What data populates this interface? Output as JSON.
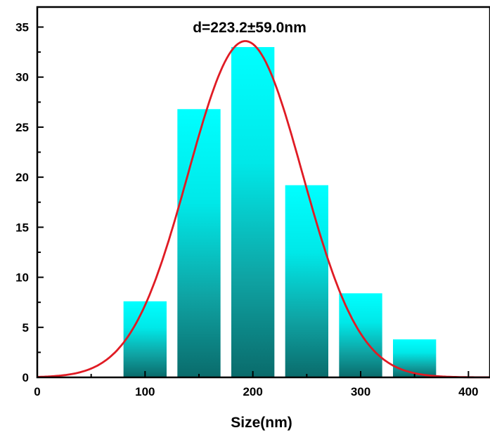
{
  "chart_data": {
    "type": "bar",
    "title": "",
    "xlabel": "Size(nm)",
    "ylabel": "",
    "annotation": "d=223.2±59.0nm",
    "xlim": [
      0,
      420
    ],
    "ylim": [
      0,
      37
    ],
    "xticks": [
      0,
      100,
      200,
      300,
      400
    ],
    "xtick_labels": [
      "0",
      "100",
      "200",
      "300",
      "400"
    ],
    "yticks": [
      0,
      5,
      10,
      15,
      20,
      25,
      30,
      35
    ],
    "ytick_labels": [
      "0",
      "5",
      "10",
      "15",
      "20",
      "25",
      "30",
      "35"
    ],
    "bins": [
      {
        "from": 80,
        "to": 120,
        "value": 7.6
      },
      {
        "from": 130,
        "to": 170,
        "value": 26.8
      },
      {
        "from": 180,
        "to": 220,
        "value": 33.0
      },
      {
        "from": 230,
        "to": 270,
        "value": 19.2
      },
      {
        "from": 280,
        "to": 320,
        "value": 8.4
      },
      {
        "from": 330,
        "to": 370,
        "value": 3.8
      }
    ],
    "fit_curve": {
      "type": "gaussian",
      "center": 193,
      "sigma": 53,
      "amplitude": 33.6,
      "color": "#e01b24"
    },
    "bar_colors": {
      "top": "#00ffff",
      "bottom": "#0a6b6b"
    },
    "grid": false,
    "legend": "none"
  }
}
